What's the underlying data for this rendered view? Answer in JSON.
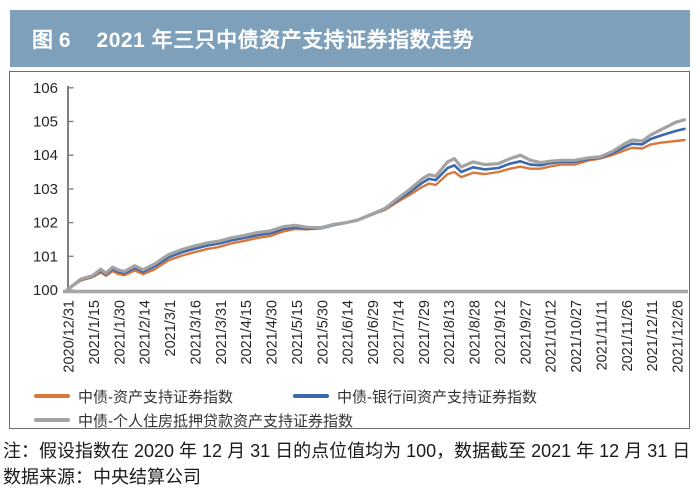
{
  "figure": {
    "label": "图 6",
    "title": "2021 年三只中债资产支持证券指数走势"
  },
  "colors": {
    "title_bar_bg": "#7ea0bb",
    "title_text": "#ffffff",
    "panel_border": "#6e6e6e",
    "y_axis": "#7f7f7f",
    "x_axis": "#a6a6a6",
    "tick_label": "#262626",
    "series_orange": "#d9763b",
    "series_blue": "#3c68ac",
    "series_gray": "#a3a3a3"
  },
  "notes": {
    "line1": "注：假设指数在 2020 年 12 月 31 日的点位值均为 100，数据截至 2021 年 12 月 31 日",
    "line2": "数据来源：中央结算公司"
  },
  "chart_data": {
    "type": "line",
    "title": "",
    "xlabel": "",
    "ylabel": "",
    "grid": false,
    "legend_position": "bottom",
    "ylim": [
      100,
      106
    ],
    "y_ticks": [
      100,
      101,
      102,
      103,
      104,
      105,
      106
    ],
    "x_tick_labels": [
      "2020/12/31",
      "2021/1/15",
      "2021/1/30",
      "2021/2/14",
      "2021/3/1",
      "2021/3/16",
      "2021/3/31",
      "2021/4/15",
      "2021/4/30",
      "2021/5/15",
      "2021/5/30",
      "2021/6/14",
      "2021/6/29",
      "2021/7/14",
      "2021/7/29",
      "2021/8/13",
      "2021/8/28",
      "2021/9/12",
      "2021/9/27",
      "2021/10/12",
      "2021/10/27",
      "2021/11/11",
      "2021/11/26",
      "2021/12/11",
      "2021/12/26"
    ],
    "x_days_range": [
      0,
      365
    ],
    "x_days": [
      0,
      8,
      15,
      20,
      23,
      27,
      30,
      34,
      40,
      45,
      52,
      60,
      68,
      75,
      83,
      90,
      97,
      105,
      112,
      120,
      128,
      135,
      142,
      150,
      158,
      165,
      172,
      180,
      188,
      195,
      203,
      210,
      214,
      218,
      225,
      229,
      233,
      240,
      247,
      255,
      262,
      268,
      274,
      280,
      285,
      292,
      300,
      308,
      315,
      322,
      330,
      334,
      340,
      345,
      352,
      360,
      365
    ],
    "series": [
      {
        "name": "中债-资产支持证券指数",
        "color": "#d9763b",
        "stroke_width": 2.4,
        "values": [
          100.0,
          100.28,
          100.38,
          100.52,
          100.42,
          100.56,
          100.48,
          100.44,
          100.58,
          100.47,
          100.62,
          100.88,
          101.02,
          101.12,
          101.22,
          101.28,
          101.38,
          101.46,
          101.54,
          101.6,
          101.74,
          101.81,
          101.8,
          101.84,
          101.94,
          102.0,
          102.08,
          102.24,
          102.38,
          102.6,
          102.84,
          103.06,
          103.16,
          103.12,
          103.44,
          103.5,
          103.35,
          103.48,
          103.44,
          103.5,
          103.6,
          103.66,
          103.6,
          103.6,
          103.66,
          103.72,
          103.72,
          103.84,
          103.9,
          104.0,
          104.15,
          104.22,
          104.2,
          104.32,
          104.38,
          104.42,
          104.45
        ]
      },
      {
        "name": "中债-银行间资产支持证券指数",
        "color": "#3c68ac",
        "stroke_width": 2.6,
        "values": [
          100.0,
          100.3,
          100.4,
          100.58,
          100.46,
          100.63,
          100.55,
          100.5,
          100.66,
          100.54,
          100.71,
          100.97,
          101.12,
          101.22,
          101.32,
          101.38,
          101.47,
          101.55,
          101.62,
          101.68,
          101.81,
          101.86,
          101.82,
          101.83,
          101.93,
          101.99,
          102.07,
          102.23,
          102.4,
          102.66,
          102.92,
          103.18,
          103.3,
          103.26,
          103.62,
          103.7,
          103.5,
          103.64,
          103.58,
          103.62,
          103.75,
          103.82,
          103.72,
          103.7,
          103.76,
          103.8,
          103.8,
          103.88,
          103.93,
          104.05,
          104.25,
          104.34,
          104.32,
          104.48,
          104.6,
          104.72,
          104.78
        ]
      },
      {
        "name": "中债-个人住房抵押贷款资产支持证券指数",
        "color": "#a3a3a3",
        "stroke_width": 3.2,
        "values": [
          100.0,
          100.32,
          100.42,
          100.62,
          100.5,
          100.68,
          100.6,
          100.55,
          100.72,
          100.6,
          100.78,
          101.05,
          101.2,
          101.3,
          101.4,
          101.45,
          101.55,
          101.62,
          101.7,
          101.75,
          101.88,
          101.92,
          101.86,
          101.85,
          101.95,
          102.0,
          102.08,
          102.25,
          102.42,
          102.7,
          103.0,
          103.3,
          103.42,
          103.38,
          103.8,
          103.9,
          103.65,
          103.8,
          103.72,
          103.75,
          103.9,
          104.0,
          103.85,
          103.78,
          103.82,
          103.85,
          103.85,
          103.92,
          103.95,
          104.1,
          104.35,
          104.45,
          104.42,
          104.6,
          104.78,
          104.98,
          105.05
        ]
      }
    ]
  }
}
